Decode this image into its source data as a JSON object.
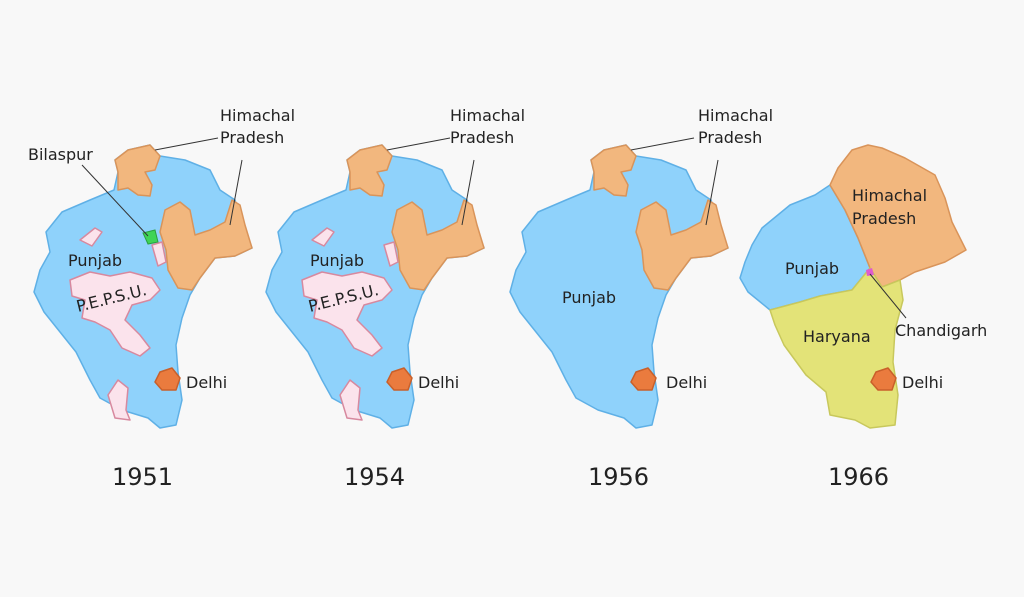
{
  "colors": {
    "background": "#f8f8f8",
    "punjab": "#8fd2fb",
    "punjab_border": "#5fb0e6",
    "himachal": "#f2b77e",
    "himachal_border": "#d9945a",
    "pepsu": "#fbe3ec",
    "pepsu_border": "#d7899f",
    "delhi": "#ea7b3e",
    "bilaspur": "#3fd456",
    "haryana": "#e3e378",
    "haryana_border": "#c8c85c",
    "chandigarh": "#e05ad0"
  },
  "panels": [
    {
      "year": "1951",
      "labels": {
        "himachal_1": "Himachal",
        "himachal_2": "Pradesh",
        "bilaspur": "Bilaspur",
        "punjab": "Punjab",
        "pepsu": "P.E.P.S.U.",
        "delhi": "Delhi"
      }
    },
    {
      "year": "1954",
      "labels": {
        "himachal_1": "Himachal",
        "himachal_2": "Pradesh",
        "punjab": "Punjab",
        "pepsu": "P.E.P.S.U.",
        "delhi": "Delhi"
      }
    },
    {
      "year": "1956",
      "labels": {
        "himachal_1": "Himachal",
        "himachal_2": "Pradesh",
        "punjab": "Punjab",
        "delhi": "Delhi"
      }
    },
    {
      "year": "1966",
      "labels": {
        "himachal_1": "Himachal",
        "himachal_2": "Pradesh",
        "punjab": "Punjab",
        "haryana": "Haryana",
        "chandigarh": "Chandigarh",
        "delhi": "Delhi"
      }
    }
  ]
}
